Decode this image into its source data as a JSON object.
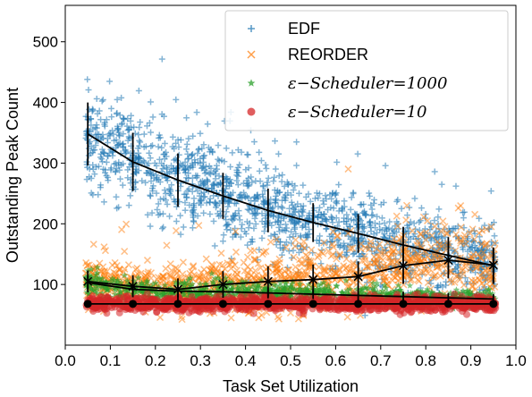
{
  "chart_data": {
    "type": "scatter",
    "xlabel": "Task Set Utilization",
    "ylabel": "Outstanding Peak Count",
    "xlim": [
      0.0,
      1.0
    ],
    "ylim": [
      0,
      560
    ],
    "x_ticks": [
      "0.0",
      "0.1",
      "0.2",
      "0.3",
      "0.4",
      "0.5",
      "0.6",
      "0.7",
      "0.8",
      "0.9",
      "1.0"
    ],
    "y_ticks": [
      "100",
      "200",
      "300",
      "400",
      "500"
    ],
    "grid": false,
    "legend_position": "top-right",
    "x": [
      0.05,
      0.15,
      0.25,
      0.35,
      0.45,
      0.55,
      0.65,
      0.75,
      0.85,
      0.95
    ],
    "series": [
      {
        "name": "EDF",
        "color": "#1f77b4",
        "marker": "+",
        "mean": [
          348,
          302,
          272,
          246,
          222,
          202,
          184,
          165,
          148,
          131
        ],
        "err": [
          52,
          48,
          44,
          38,
          36,
          32,
          32,
          30,
          30,
          30
        ],
        "spread": [
          45,
          42,
          40,
          38,
          36,
          34,
          33,
          32,
          31,
          30
        ]
      },
      {
        "name": "REORDER",
        "color": "#ff7f0e",
        "marker": "x",
        "mean": [
          105,
          97,
          92,
          100,
          105,
          108,
          113,
          131,
          140,
          132
        ],
        "err": [
          18,
          18,
          18,
          22,
          25,
          25,
          25,
          30,
          30,
          28
        ],
        "spread": [
          18,
          18,
          20,
          24,
          26,
          27,
          28,
          30,
          32,
          32
        ]
      },
      {
        "name": "ε−Scheduler=1000",
        "color": "#2ca02c",
        "marker": "*",
        "mean": [
          103,
          92,
          89,
          88,
          86,
          84,
          82,
          80,
          78,
          76
        ],
        "err": [
          12,
          10,
          10,
          9,
          9,
          8,
          8,
          8,
          8,
          8
        ],
        "spread": [
          12,
          10,
          9,
          9,
          8,
          8,
          8,
          8,
          7,
          7
        ]
      },
      {
        "name": "ε−Scheduler=10",
        "color": "#d62728",
        "marker": "o",
        "mean": [
          68,
          68,
          68,
          68,
          68,
          68,
          68,
          68,
          68,
          68
        ],
        "err": [
          4,
          4,
          4,
          4,
          4,
          4,
          4,
          4,
          4,
          4
        ],
        "spread": [
          6,
          6,
          6,
          6,
          6,
          6,
          6,
          6,
          6,
          6
        ]
      }
    ]
  }
}
